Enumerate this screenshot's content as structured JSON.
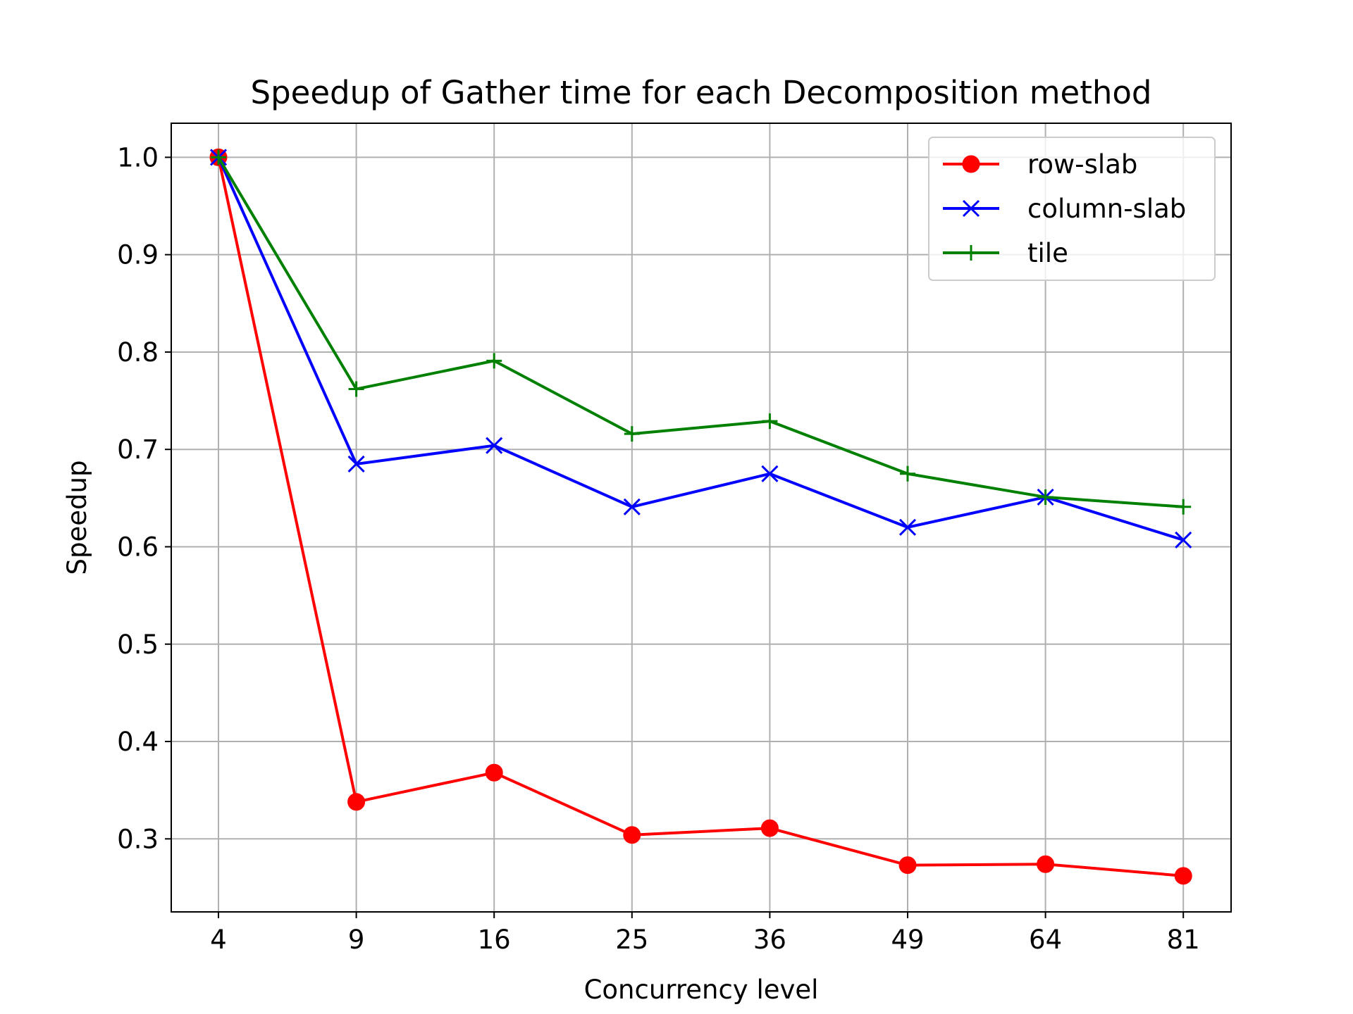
{
  "chart_data": {
    "type": "line",
    "title": "Speedup of Gather time for each Decomposition method",
    "xlabel": "Concurrency level",
    "ylabel": "Speedup",
    "categories": [
      "4",
      "9",
      "16",
      "25",
      "36",
      "49",
      "64",
      "81"
    ],
    "ylim": [
      0.225,
      1.035
    ],
    "yticks": [
      "0.3",
      "0.4",
      "0.5",
      "0.6",
      "0.7",
      "0.8",
      "0.9",
      "1.0"
    ],
    "grid": true,
    "legend_position": "top-right",
    "series": [
      {
        "name": "row-slab",
        "color": "#ff0000",
        "marker": "circle",
        "values": [
          1.0,
          0.338,
          0.368,
          0.304,
          0.311,
          0.273,
          0.274,
          0.262
        ]
      },
      {
        "name": "column-slab",
        "color": "#0000ff",
        "marker": "x",
        "values": [
          1.0,
          0.685,
          0.704,
          0.641,
          0.675,
          0.62,
          0.651,
          0.607
        ]
      },
      {
        "name": "tile",
        "color": "#008000",
        "marker": "plus",
        "values": [
          1.0,
          0.762,
          0.791,
          0.716,
          0.729,
          0.675,
          0.651,
          0.641
        ]
      }
    ]
  }
}
